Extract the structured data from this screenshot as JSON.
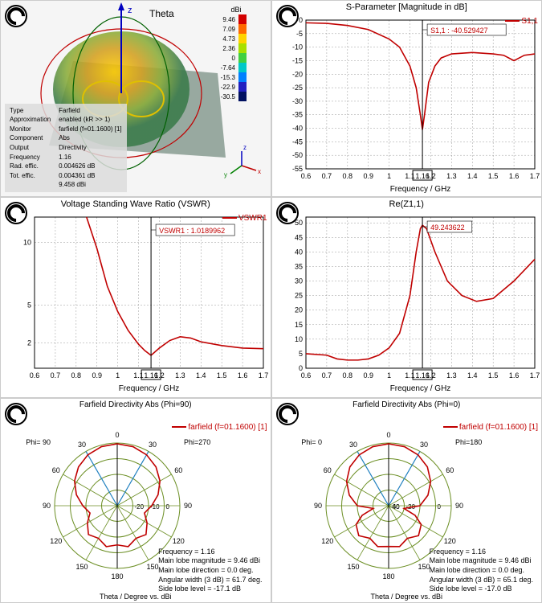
{
  "panel3d": {
    "title_label": "Theta",
    "colorbar": {
      "unit": "dBi",
      "ticks": [
        "9.46",
        "7.09",
        "4.73",
        "2.36",
        "0",
        "-7.64",
        "-15.3",
        "-22.9",
        "-30.5"
      ],
      "colors": [
        "#d30000",
        "#ff6a00",
        "#ffd400",
        "#a8e000",
        "#40d040",
        "#00c8c8",
        "#0080ff",
        "#2020c0",
        "#001060"
      ]
    },
    "info": [
      [
        "Type",
        "Farfield"
      ],
      [
        "Approximation",
        "enabled (kR >> 1)"
      ],
      [
        "Monitor",
        "farfield (f=01.1600) [1]"
      ],
      [
        "Component",
        "Abs"
      ],
      [
        "Output",
        "Directivity"
      ],
      [
        "Frequency",
        "1.16"
      ],
      [
        "Rad. effic.",
        "0.004626 dB"
      ],
      [
        "Tot. effic.",
        "0.004361 dB"
      ],
      [
        "",
        "9.458 dBi"
      ]
    ]
  },
  "s11": {
    "title": "S-Parameter [Magnitude in dB]",
    "legend": "S1,1",
    "marker_label": "S1,1 : -40.529427",
    "xlabel": "Frequency / GHz",
    "xticks": [
      "0.6",
      "0.7",
      "0.8",
      "0.9",
      "1",
      "1.1",
      "1.16",
      "1.2",
      "1.3",
      "1.4",
      "1.5",
      "1.6",
      "1.7"
    ],
    "xtick_pos": [
      0.6,
      0.7,
      0.8,
      0.9,
      1.0,
      1.1,
      1.16,
      1.2,
      1.3,
      1.4,
      1.5,
      1.6,
      1.7
    ],
    "xtick_highlight": 1.16,
    "yticks": [
      "0",
      "-5",
      "-10",
      "-15",
      "-20",
      "-25",
      "-30",
      "-35",
      "-40",
      "-45",
      "-50",
      "-55"
    ],
    "ytick_vals": [
      0,
      -5,
      -10,
      -15,
      -20,
      -25,
      -30,
      -35,
      -40,
      -45,
      -50,
      -55
    ],
    "ylim": [
      -55,
      0
    ],
    "xlim": [
      0.6,
      1.7
    ],
    "line_color": "#c00000",
    "grid_color": "#808080",
    "data": [
      [
        0.6,
        -1.0
      ],
      [
        0.7,
        -1.2
      ],
      [
        0.8,
        -2.0
      ],
      [
        0.9,
        -3.5
      ],
      [
        1.0,
        -7.0
      ],
      [
        1.05,
        -10
      ],
      [
        1.1,
        -17
      ],
      [
        1.13,
        -25
      ],
      [
        1.15,
        -35
      ],
      [
        1.16,
        -40.5
      ],
      [
        1.17,
        -35
      ],
      [
        1.19,
        -23
      ],
      [
        1.22,
        -17
      ],
      [
        1.25,
        -14
      ],
      [
        1.3,
        -12.5
      ],
      [
        1.4,
        -12
      ],
      [
        1.5,
        -12.5
      ],
      [
        1.55,
        -13
      ],
      [
        1.6,
        -15
      ],
      [
        1.65,
        -13
      ],
      [
        1.7,
        -12.5
      ]
    ]
  },
  "vswr": {
    "title": "Voltage Standing Wave Ratio (VSWR)",
    "legend": "VSWR1",
    "marker_label": "VSWR1 : 1.0189962",
    "xlabel": "Frequency / GHz",
    "xticks": [
      "0.6",
      "0.7",
      "0.8",
      "0.9",
      "1",
      "1.1",
      "1.16",
      "1.2",
      "1.3",
      "1.4",
      "1.5",
      "1.6",
      "1.7"
    ],
    "xtick_pos": [
      0.6,
      0.7,
      0.8,
      0.9,
      1.0,
      1.1,
      1.16,
      1.2,
      1.3,
      1.4,
      1.5,
      1.6,
      1.7
    ],
    "xtick_highlight": 1.16,
    "yticks": [
      "2",
      "5",
      "10"
    ],
    "ytick_vals": [
      2,
      5,
      10
    ],
    "ylim": [
      0,
      12
    ],
    "xlim": [
      0.6,
      1.7
    ],
    "line_color": "#c00000",
    "grid_color": "#808080",
    "data": [
      [
        0.85,
        12
      ],
      [
        0.9,
        9.5
      ],
      [
        0.95,
        6.5
      ],
      [
        1.0,
        4.5
      ],
      [
        1.05,
        3.0
      ],
      [
        1.1,
        1.9
      ],
      [
        1.13,
        1.4
      ],
      [
        1.16,
        1.02
      ],
      [
        1.2,
        1.6
      ],
      [
        1.25,
        2.2
      ],
      [
        1.3,
        2.5
      ],
      [
        1.35,
        2.4
      ],
      [
        1.4,
        2.1
      ],
      [
        1.5,
        1.8
      ],
      [
        1.6,
        1.6
      ],
      [
        1.7,
        1.55
      ]
    ]
  },
  "rez": {
    "title": "Re(Z1,1)",
    "legend": "",
    "marker_label": "49.243622",
    "xlabel": "Frequency / GHz",
    "xticks": [
      "0.6",
      "0.7",
      "0.8",
      "0.9",
      "1",
      "1.1",
      "1.16",
      "1.2",
      "1.3",
      "1.4",
      "1.5",
      "1.6",
      "1.7"
    ],
    "xtick_pos": [
      0.6,
      0.7,
      0.8,
      0.9,
      1.0,
      1.1,
      1.16,
      1.2,
      1.3,
      1.4,
      1.5,
      1.6,
      1.7
    ],
    "xtick_highlight": 1.16,
    "yticks": [
      "0",
      "5",
      "10",
      "15",
      "20",
      "25",
      "30",
      "35",
      "40",
      "45",
      "50"
    ],
    "ytick_vals": [
      0,
      5,
      10,
      15,
      20,
      25,
      30,
      35,
      40,
      45,
      50
    ],
    "ylim": [
      0,
      52
    ],
    "xlim": [
      0.6,
      1.7
    ],
    "line_color": "#c00000",
    "grid_color": "#808080",
    "data": [
      [
        0.6,
        5
      ],
      [
        0.7,
        4.5
      ],
      [
        0.75,
        3.2
      ],
      [
        0.8,
        2.8
      ],
      [
        0.85,
        2.8
      ],
      [
        0.9,
        3.2
      ],
      [
        0.95,
        4.5
      ],
      [
        1.0,
        7
      ],
      [
        1.05,
        12
      ],
      [
        1.1,
        25
      ],
      [
        1.13,
        40
      ],
      [
        1.15,
        48
      ],
      [
        1.16,
        49.2
      ],
      [
        1.18,
        48
      ],
      [
        1.22,
        40
      ],
      [
        1.28,
        30
      ],
      [
        1.35,
        25
      ],
      [
        1.42,
        23
      ],
      [
        1.5,
        24
      ],
      [
        1.6,
        30
      ],
      [
        1.7,
        37.5
      ]
    ]
  },
  "polar1": {
    "title": "Farfield Directivity Abs (Phi=90)",
    "legend": "farfield (f=01.1600) [1]",
    "phi_left": "Phi=  90",
    "phi_right": "Phi=270",
    "angle_labels": [
      "0",
      "30",
      "60",
      "90",
      "120",
      "150",
      "180"
    ],
    "ring_labels": [
      "-20",
      "-10",
      "0"
    ],
    "xlabel": "Theta / Degree vs. dBi",
    "info": [
      "Frequency = 1.16",
      "Main lobe magnitude =    9.46 dBi",
      "Main lobe direction =    0.0 deg.",
      "Angular width (3 dB) =   61.7 deg.",
      "Side lobe level =  -17.1 dB"
    ],
    "line_color": "#c00000",
    "ring_color": "#6b8e23",
    "axis_color": "#1e7fbf",
    "pattern": [
      [
        0,
        9.5
      ],
      [
        15,
        9.0
      ],
      [
        30,
        7.5
      ],
      [
        45,
        5.0
      ],
      [
        60,
        1.5
      ],
      [
        75,
        -3
      ],
      [
        90,
        -8
      ],
      [
        105,
        -12
      ],
      [
        120,
        -8
      ],
      [
        135,
        -4
      ],
      [
        150,
        -6
      ],
      [
        165,
        -3
      ],
      [
        180,
        -5
      ],
      [
        195,
        -3
      ],
      [
        210,
        -6
      ],
      [
        225,
        -4
      ],
      [
        240,
        -8
      ],
      [
        255,
        -12
      ],
      [
        270,
        -8
      ],
      [
        285,
        -3
      ],
      [
        300,
        1.5
      ],
      [
        315,
        5.0
      ],
      [
        330,
        7.5
      ],
      [
        345,
        9.0
      ]
    ]
  },
  "polar2": {
    "title": "Farfield Directivity Abs (Phi=0)",
    "legend": "farfield (f=01.1600) [1]",
    "phi_left": "Phi=   0",
    "phi_right": "Phi=180",
    "angle_labels": [
      "0",
      "30",
      "60",
      "90",
      "120",
      "150",
      "180"
    ],
    "ring_labels": [
      "-60",
      "-40",
      "-20",
      "0"
    ],
    "xlabel": "Theta / Degree vs. dBi",
    "info": [
      "Frequency = 1.16",
      "Main lobe magnitude =    9.46 dBi",
      "Main lobe direction =    0.0 deg.",
      "Angular width (3 dB) =   65.1 deg.",
      "Side lobe level =  -17.0 dB"
    ],
    "line_color": "#c00000",
    "ring_color": "#6b8e23",
    "axis_color": "#1e7fbf",
    "pattern": [
      [
        0,
        9.5
      ],
      [
        15,
        9.0
      ],
      [
        30,
        7.5
      ],
      [
        45,
        5.0
      ],
      [
        60,
        1.0
      ],
      [
        75,
        -4
      ],
      [
        90,
        -10
      ],
      [
        100,
        -20
      ],
      [
        110,
        -12
      ],
      [
        120,
        -6
      ],
      [
        135,
        -3
      ],
      [
        150,
        -6
      ],
      [
        165,
        -3
      ],
      [
        180,
        -4
      ],
      [
        195,
        -3
      ],
      [
        210,
        -6
      ],
      [
        225,
        -3
      ],
      [
        240,
        -6
      ],
      [
        250,
        -12
      ],
      [
        260,
        -20
      ],
      [
        270,
        -10
      ],
      [
        285,
        -4
      ],
      [
        300,
        1.0
      ],
      [
        315,
        5.0
      ],
      [
        330,
        7.5
      ],
      [
        345,
        9.0
      ]
    ]
  }
}
